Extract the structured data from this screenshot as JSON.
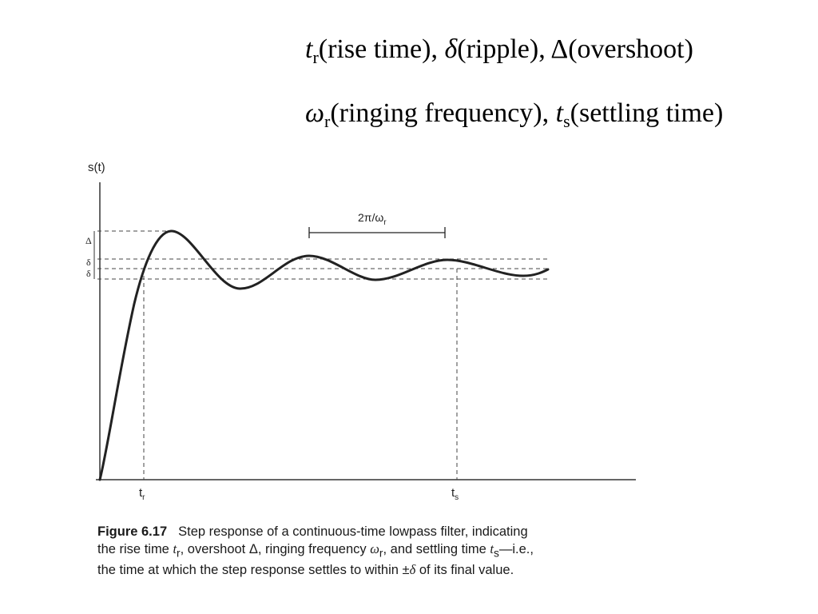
{
  "heading": {
    "line1": {
      "t": "t",
      "t_sub": "r",
      "rise_label": "(rise time), ",
      "delta": "δ",
      "ripple_label": "(ripple), ",
      "Delta": "Δ",
      "overshoot_label": "(overshoot)"
    },
    "line2": {
      "omega": "ω",
      "omega_sub": "r",
      "ringing_label": "(ringing frequency), ",
      "t": "t",
      "t_sub": "s",
      "settling_label": "(settling time)"
    }
  },
  "figure": {
    "y_axis_label": "s(t)",
    "overshoot_mark": "Δ",
    "ripple_mark_upper": "δ",
    "ripple_mark_lower": "δ",
    "period_label": "2π/ω",
    "period_label_sub": "r",
    "tick_tr": "t",
    "tick_tr_sub": "r",
    "tick_ts": "t",
    "tick_ts_sub": "s",
    "curve_color": "#222222"
  },
  "caption": {
    "label": "Figure 6.17",
    "line1": "Step response of a continuous-time lowpass filter, indicating",
    "line2_a": "the rise time ",
    "line2_tr": "t",
    "line2_tr_sub": "r",
    "line2_b": ", overshoot Δ, ringing frequency ",
    "line2_wr": "ω",
    "line2_wr_sub": "r",
    "line2_c": ", and settling time ",
    "line2_ts": "t",
    "line2_ts_sub": "s",
    "line2_d": "—i.e.,",
    "line3_a": "the time at which the step response settles to within ±",
    "line3_delta": "δ",
    "line3_b": " of its final value."
  }
}
